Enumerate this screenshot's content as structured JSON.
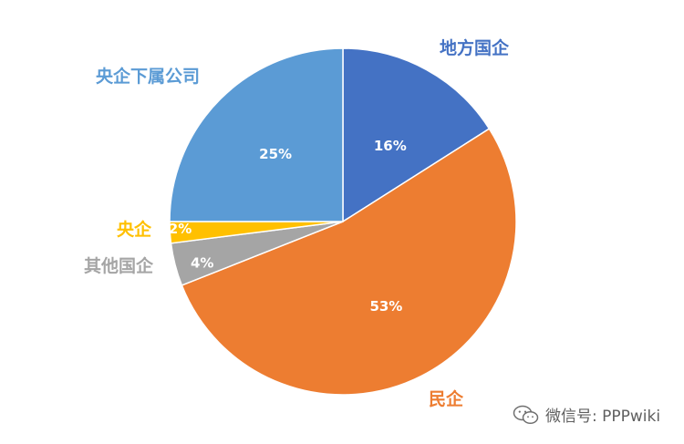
{
  "chart_data": {
    "type": "pie",
    "slices": [
      {
        "label": "地方国企",
        "value": 16,
        "value_label": "16%",
        "color": "#4472C4"
      },
      {
        "label": "民企",
        "value": 53,
        "value_label": "53%",
        "color": "#ED7D31"
      },
      {
        "label": "其他国企",
        "value": 4,
        "value_label": "4%",
        "color": "#A5A5A5"
      },
      {
        "label": "央企",
        "value": 2,
        "value_label": "2%",
        "color": "#FFC000"
      },
      {
        "label": "央企下属公司",
        "value": 25,
        "value_label": "25%",
        "color": "#5B9BD5"
      }
    ],
    "start": "12 o'clock, clockwise",
    "legend": "none (category labels placed around pie)"
  },
  "watermark": {
    "text": "微信号: PPPwiki",
    "icon": "wechat-icon"
  }
}
